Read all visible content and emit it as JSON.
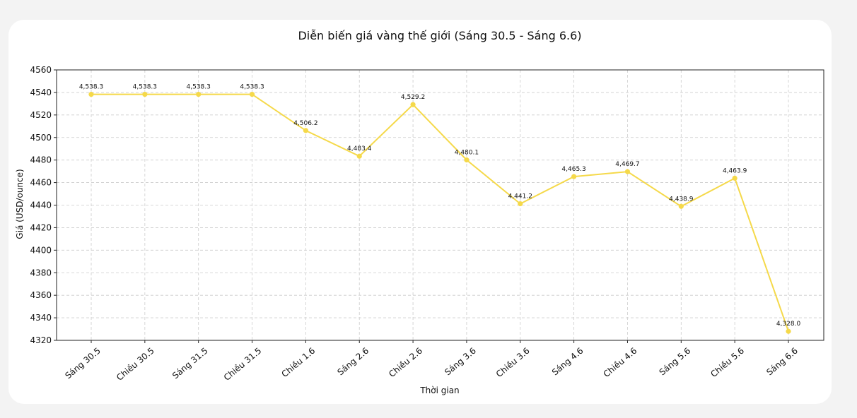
{
  "chart_data": {
    "type": "line",
    "title": "Diễn biến giá vàng thế giới (Sáng 30.5 - Sáng 6.6)",
    "xlabel": "Thời gian",
    "ylabel": "Giá (USD/ounce)",
    "ylim": [
      4320,
      4560
    ],
    "yticks": [
      4320,
      4340,
      4360,
      4380,
      4400,
      4420,
      4440,
      4460,
      4480,
      4500,
      4520,
      4540,
      4560
    ],
    "grid": true,
    "color": "#f5d94a",
    "categories": [
      "Sáng 30.5",
      "Chiều 30.5",
      "Sáng 31.5",
      "Chiều 31.5",
      "Chiều 1.6",
      "Sáng 2.6",
      "Chiều 2.6",
      "Sáng 3.6",
      "Chiều 3.6",
      "Sáng 4.6",
      "Chiều 4.6",
      "Sáng 5.6",
      "Chiều 5.6",
      "Sáng 6.6"
    ],
    "values": [
      4538.3,
      4538.3,
      4538.3,
      4538.3,
      4506.2,
      4483.4,
      4529.2,
      4480.1,
      4441.2,
      4465.3,
      4469.7,
      4438.9,
      4463.9,
      4328.0
    ],
    "data_labels": [
      "4,538.3",
      "4,538.3",
      "4,538.3",
      "4,538.3",
      "4,506.2",
      "4,483.4",
      "4,529.2",
      "4,480.1",
      "4,441.2",
      "4,465.3",
      "4,469.7",
      "4,438.9",
      "4,463.9",
      "4,328.0"
    ]
  }
}
